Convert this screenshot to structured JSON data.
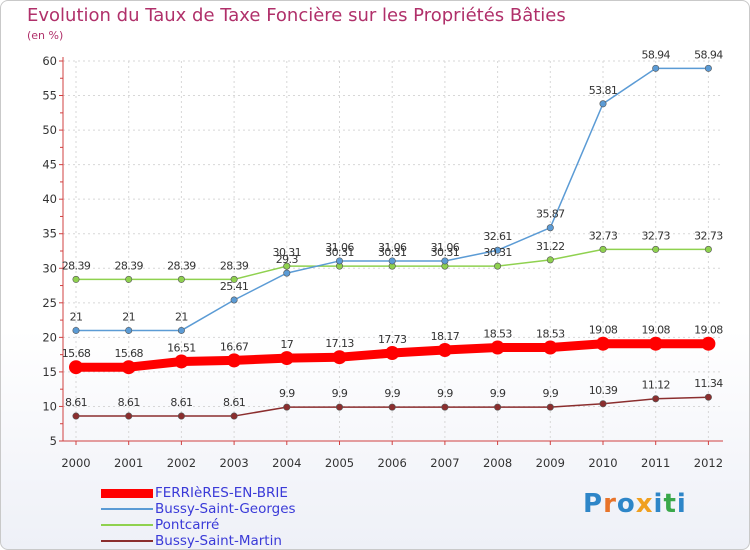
{
  "header": {
    "title": "Evolution du Taux de Taxe Foncière sur les Propriétés Bâties",
    "unit": "(en %)"
  },
  "logo": {
    "text": "Proxiti"
  },
  "chart_data": {
    "type": "line",
    "title": "Evolution du Taux de Taxe Foncière sur les Propriétés Bâties",
    "ylabel": "(en %)",
    "xlabel": "",
    "x": [
      "2000",
      "2001",
      "2002",
      "2003",
      "2004",
      "2005",
      "2006",
      "2007",
      "2008",
      "2009",
      "2010",
      "2011",
      "2012"
    ],
    "ylim": [
      5,
      60
    ],
    "yticks": [
      5,
      10,
      15,
      20,
      25,
      30,
      35,
      40,
      45,
      50,
      55,
      60
    ],
    "grid": true,
    "legend_position": "bottom-left",
    "series": [
      {
        "name": "FERRIèRES-EN-BRIE",
        "color": "#ff0000",
        "emphasis": true,
        "values": [
          15.68,
          15.68,
          16.51,
          16.67,
          17,
          17.13,
          17.73,
          18.17,
          18.53,
          18.53,
          19.08,
          19.08,
          19.08
        ],
        "labels": [
          "15.68",
          "15.68",
          "16.51",
          "16.67",
          "17",
          "17.13",
          "17.73",
          "18.17",
          "18.53",
          "18.53",
          "19.08",
          "19.08",
          "19.08"
        ]
      },
      {
        "name": "Bussy-Saint-Georges",
        "color": "#5b9bd5",
        "values": [
          21,
          21,
          21,
          25.41,
          29.3,
          31.06,
          31.06,
          31.06,
          32.61,
          35.87,
          53.81,
          58.94,
          58.94
        ],
        "labels": [
          "21",
          "21",
          "21",
          "25.41",
          "29.3",
          "31.06",
          "31.06",
          "31.06",
          "32.61",
          "35.87",
          "53.81",
          "58.94",
          "58.94"
        ]
      },
      {
        "name": "Pontcarré",
        "color": "#8fd14f",
        "values": [
          28.39,
          28.39,
          28.39,
          28.39,
          30.31,
          30.31,
          30.31,
          30.31,
          30.31,
          31.22,
          32.73,
          32.73,
          32.73
        ],
        "labels": [
          "28.39",
          "28.39",
          "28.39",
          "28.39",
          "30.31",
          "30.31",
          "30.31",
          "30.31",
          "30.31",
          "31.22",
          "32.73",
          "32.73",
          "32.73"
        ]
      },
      {
        "name": "Bussy-Saint-Martin",
        "color": "#8b2e2e",
        "values": [
          8.61,
          8.61,
          8.61,
          8.61,
          9.9,
          9.9,
          9.9,
          9.9,
          9.9,
          9.9,
          10.39,
          11.12,
          11.34
        ],
        "labels": [
          "8.61",
          "8.61",
          "8.61",
          "8.61",
          "9.9",
          "9.9",
          "9.9",
          "9.9",
          "9.9",
          "9.9",
          "10.39",
          "11.12",
          "11.34"
        ]
      }
    ]
  }
}
